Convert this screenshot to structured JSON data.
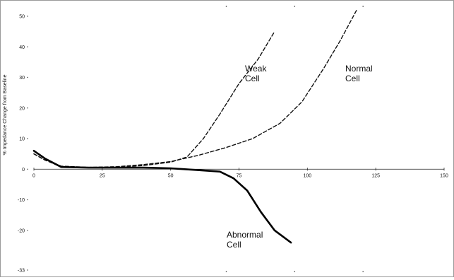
{
  "chart_data": {
    "type": "line",
    "ylabel": "% Impedance Change from Baseline",
    "xlabel": "",
    "xlim": [
      0,
      150
    ],
    "ylim": [
      -33,
      50
    ],
    "x_ticks": [
      0,
      25,
      50,
      75,
      100,
      125,
      150
    ],
    "x_tick_labels": [
      "0",
      "25",
      "50",
      "75",
      "100",
      "125",
      "150"
    ],
    "y_ticks": [
      50,
      40,
      30,
      20,
      10,
      0,
      -10,
      -20,
      -33
    ],
    "y_tick_labels": [
      "50",
      "40",
      "30",
      "20",
      "10",
      "0",
      "-10",
      "-20",
      "-33"
    ],
    "grid": false,
    "series": [
      {
        "name": "Weak Cell",
        "label_lines": [
          "Weak",
          "Cell"
        ],
        "style": "dashed",
        "color": "#111111",
        "points": [
          [
            0,
            5
          ],
          [
            4,
            3
          ],
          [
            10,
            0.8
          ],
          [
            20,
            0.5
          ],
          [
            30,
            0.6
          ],
          [
            40,
            1.2
          ],
          [
            50,
            2.3
          ],
          [
            56,
            4
          ],
          [
            62,
            10
          ],
          [
            68,
            18
          ],
          [
            75,
            28
          ],
          [
            82,
            36
          ],
          [
            88,
            45
          ]
        ]
      },
      {
        "name": "Normal Cell",
        "label_lines": [
          "Normal",
          "Cell"
        ],
        "style": "dashed",
        "color": "#111111",
        "points": [
          [
            0,
            5
          ],
          [
            4,
            3
          ],
          [
            10,
            1
          ],
          [
            20,
            0.6
          ],
          [
            30,
            0.8
          ],
          [
            40,
            1.5
          ],
          [
            50,
            2.5
          ],
          [
            60,
            4.5
          ],
          [
            70,
            7
          ],
          [
            80,
            10
          ],
          [
            90,
            15
          ],
          [
            98,
            22
          ],
          [
            106,
            33
          ],
          [
            112,
            42
          ],
          [
            118,
            52
          ]
        ]
      },
      {
        "name": "Abnormal Cell",
        "label_lines": [
          "Abnormal",
          "Cell"
        ],
        "style": "solid",
        "color": "#000000",
        "points": [
          [
            0,
            6
          ],
          [
            4,
            3.5
          ],
          [
            10,
            0.7
          ],
          [
            20,
            0.5
          ],
          [
            30,
            0.5
          ],
          [
            40,
            0.5
          ],
          [
            50,
            0.3
          ],
          [
            60,
            -0.3
          ],
          [
            68,
            -0.8
          ],
          [
            73,
            -3
          ],
          [
            78,
            -7
          ],
          [
            83,
            -14
          ],
          [
            88,
            -20
          ],
          [
            94,
            -24
          ]
        ]
      }
    ]
  }
}
